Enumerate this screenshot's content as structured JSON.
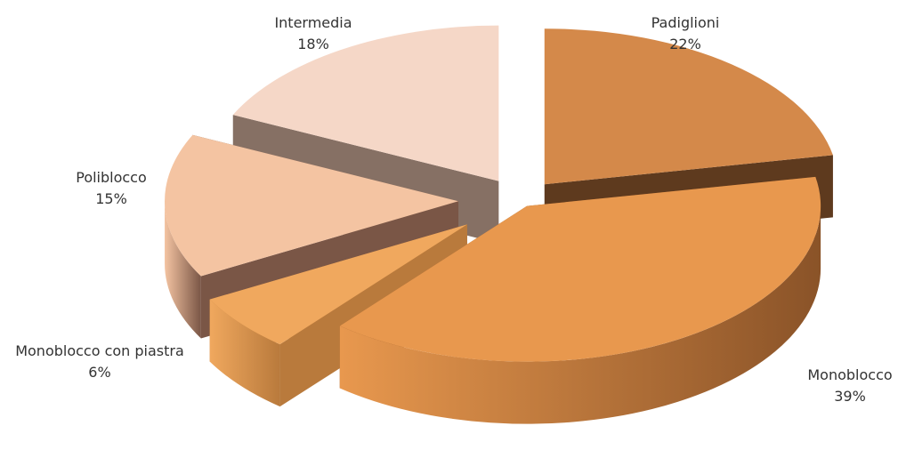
{
  "chart_data": {
    "type": "pie",
    "style": "3d-exploded",
    "labels": [
      "Padiglioni",
      "Monoblocco",
      "Monoblocco con piastra",
      "Poliblocco",
      "Intermedia"
    ],
    "values": [
      22,
      39,
      6,
      15,
      18
    ],
    "value_labels": [
      "22%",
      "39%",
      "6%",
      "15%",
      "18%"
    ],
    "colors": [
      "#D4894A",
      "#E8984E",
      "#F0A85E",
      "#F4C4A2",
      "#F5D7C7"
    ],
    "side_colors": [
      "#5E3A1E",
      "#8A5328",
      "#B97A3C",
      "#7A5646",
      "#867064"
    ],
    "legend": "none"
  }
}
